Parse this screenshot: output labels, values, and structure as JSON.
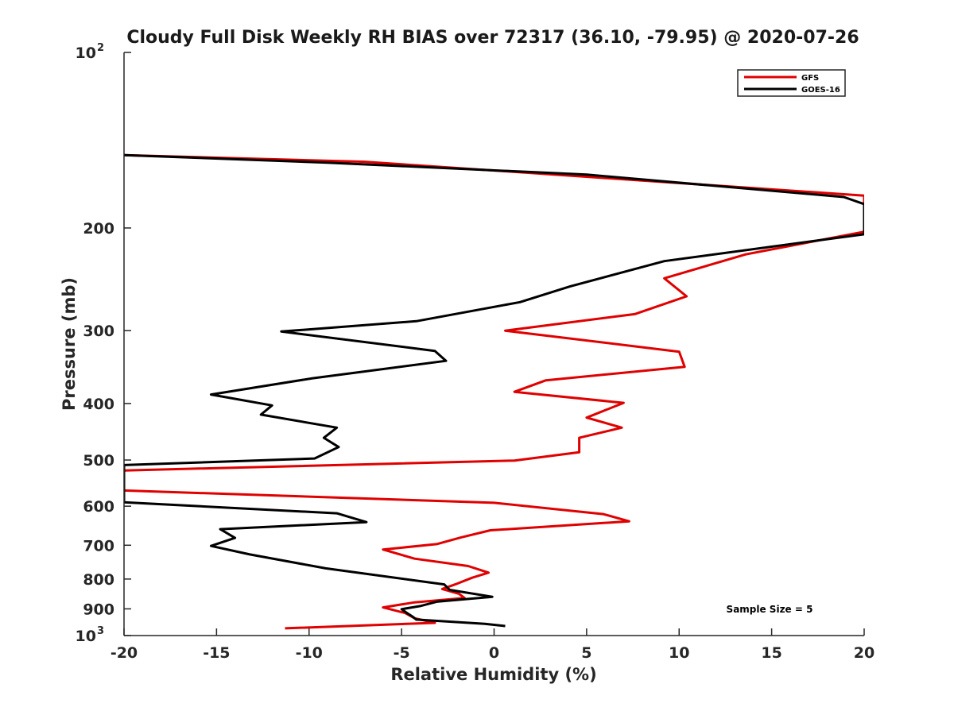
{
  "chart_data": {
    "type": "line",
    "title": "Cloudy Full Disk Weekly RH BIAS over 72317 (36.10, -79.95) @ 2020-07-26",
    "xlabel": "Relative Humidity (%)",
    "ylabel": "Pressure (mb)",
    "xlim": [
      -20,
      20
    ],
    "ylim": [
      100,
      1000
    ],
    "yscale": "log",
    "y_reversed": true,
    "xticks": [
      -20,
      -15,
      -10,
      -5,
      0,
      5,
      10,
      15,
      20
    ],
    "yticks": [
      {
        "value": 100,
        "base": "10",
        "exp": "2"
      },
      {
        "value": 200,
        "label": "200"
      },
      {
        "value": 300,
        "label": "300"
      },
      {
        "value": 400,
        "label": "400"
      },
      {
        "value": 500,
        "label": "500"
      },
      {
        "value": 600,
        "label": "600"
      },
      {
        "value": 700,
        "label": "700"
      },
      {
        "value": 800,
        "label": "800"
      },
      {
        "value": 900,
        "label": "900"
      },
      {
        "value": 1000,
        "base": "10",
        "exp": "3"
      }
    ],
    "legend_position": "top-right",
    "annotation": "Sample Size = 5",
    "series": [
      {
        "name": "GFS",
        "color": "#e00000",
        "points": [
          [
            -20,
            150
          ],
          [
            -7,
            154
          ],
          [
            20,
            176
          ],
          [
            20,
            203
          ],
          [
            13.6,
            222
          ],
          [
            9.2,
            244
          ],
          [
            10.4,
            262
          ],
          [
            7.6,
            281
          ],
          [
            0.6,
            300
          ],
          [
            10,
            326
          ],
          [
            10.3,
            346
          ],
          [
            2.8,
            365
          ],
          [
            1.1,
            382
          ],
          [
            7,
            399
          ],
          [
            5,
            423
          ],
          [
            6.9,
            440
          ],
          [
            4.6,
            458
          ],
          [
            4.6,
            485
          ],
          [
            1.1,
            501
          ],
          [
            -20,
            521
          ],
          [
            -20,
            564
          ],
          [
            0,
            592
          ],
          [
            5.9,
            619
          ],
          [
            7.3,
            637
          ],
          [
            -0.2,
            660
          ],
          [
            -1.8,
            679
          ],
          [
            -3.1,
            697
          ],
          [
            -6,
            712
          ],
          [
            -4.3,
            738
          ],
          [
            -1.4,
            760
          ],
          [
            -0.3,
            780
          ],
          [
            -1.2,
            796
          ],
          [
            -2.1,
            817
          ],
          [
            -2.8,
            832
          ],
          [
            -1.9,
            848
          ],
          [
            -1.6,
            862
          ],
          [
            -4.3,
            877
          ],
          [
            -6,
            895
          ],
          [
            -4.8,
            915
          ],
          [
            -4.3,
            934
          ],
          [
            -3.2,
            951
          ],
          [
            -11.3,
            972
          ]
        ]
      },
      {
        "name": "GOES-16",
        "color": "#000000",
        "points": [
          [
            -20,
            150
          ],
          [
            -9,
            154.5
          ],
          [
            5,
            162
          ],
          [
            18.9,
            177
          ],
          [
            20,
            182
          ],
          [
            20,
            205
          ],
          [
            9.2,
            228
          ],
          [
            4.1,
            252
          ],
          [
            1.4,
            268
          ],
          [
            -4.2,
            289
          ],
          [
            -11.5,
            301
          ],
          [
            -3.2,
            325
          ],
          [
            -2.6,
            338
          ],
          [
            -9.8,
            362
          ],
          [
            -15.3,
            386
          ],
          [
            -12,
            403
          ],
          [
            -12.6,
            418
          ],
          [
            -8.5,
            440
          ],
          [
            -9.2,
            458
          ],
          [
            -8.4,
            475
          ],
          [
            -9.7,
            497
          ],
          [
            -20,
            510
          ],
          [
            -20,
            591
          ],
          [
            -8.5,
            617
          ],
          [
            -6.9,
            639
          ],
          [
            -14.8,
            657
          ],
          [
            -14,
            680
          ],
          [
            -15.3,
            702
          ],
          [
            -13.2,
            726
          ],
          [
            -9.1,
            767
          ],
          [
            -2.7,
            817
          ],
          [
            -2.4,
            835
          ],
          [
            -0.1,
            858
          ],
          [
            -3.1,
            875
          ],
          [
            -4,
            890
          ],
          [
            -5,
            901
          ],
          [
            -4.7,
            915
          ],
          [
            -4.4,
            928
          ],
          [
            -4.2,
            939
          ],
          [
            -0.5,
            955
          ],
          [
            0.6,
            963
          ]
        ]
      }
    ]
  }
}
